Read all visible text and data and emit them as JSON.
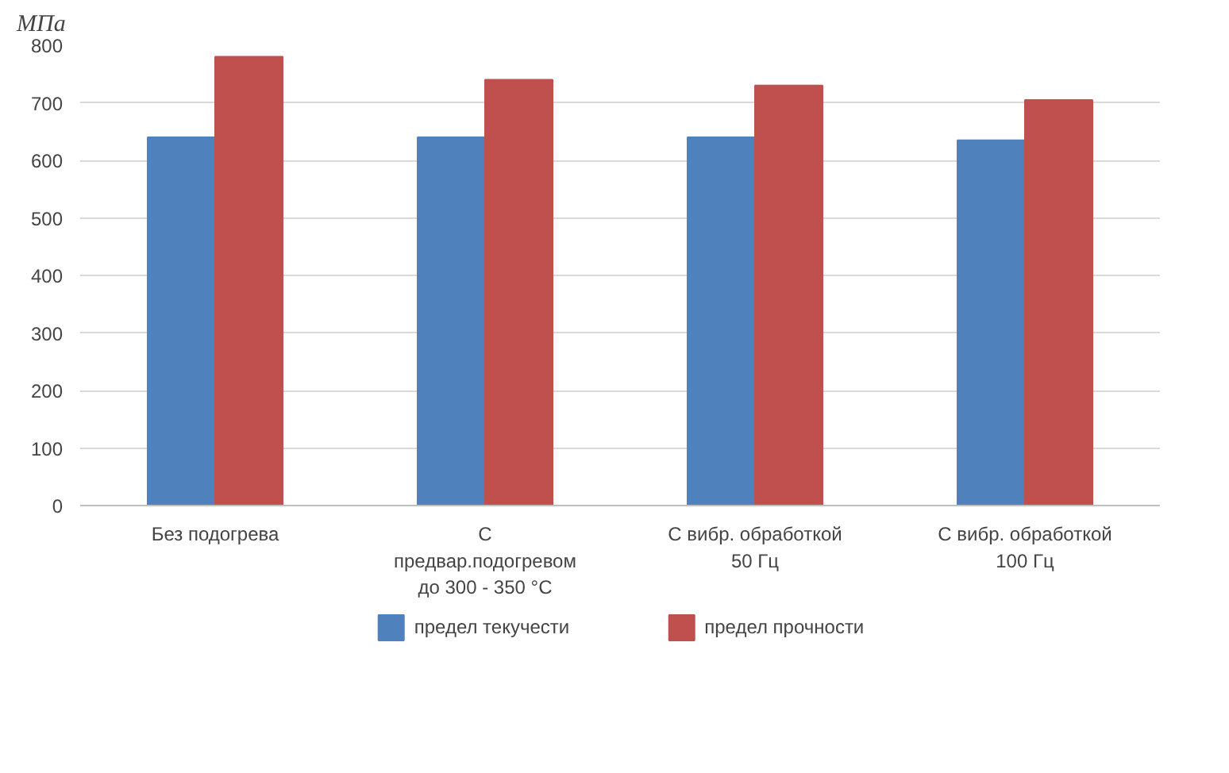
{
  "chart_data": {
    "type": "bar",
    "ylabel": "МПа",
    "categories": [
      "Без подогрева",
      "С\nпредвар.подогревом\nдо 300 - 350 °C",
      "С вибр. обработкой\n50 Гц",
      "С вибр. обработкой\n100 Гц"
    ],
    "series": [
      {
        "name": "предел текучести",
        "color": "#4f81bd",
        "values": [
          640,
          640,
          640,
          635
        ]
      },
      {
        "name": "предел прочности",
        "color": "#c0504d",
        "values": [
          780,
          740,
          730,
          705
        ]
      }
    ],
    "ylim": [
      0,
      800
    ],
    "yticks": [
      0,
      100,
      200,
      300,
      400,
      500,
      600,
      700,
      800
    ],
    "grid": "y",
    "legend": "bottom"
  }
}
